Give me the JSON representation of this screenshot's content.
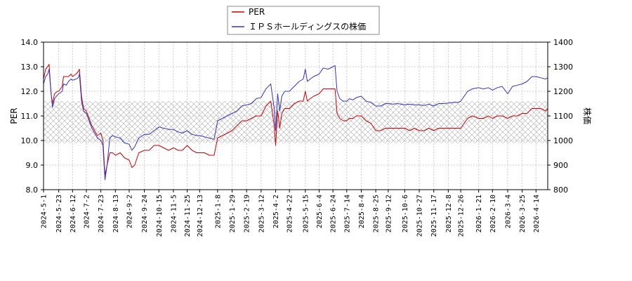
{
  "chart_data": {
    "type": "line",
    "grid": true,
    "legend_position": "top-center",
    "ylabel_left": "PER",
    "ylabel_right": "株価",
    "ylim_left": [
      8.0,
      14.0
    ],
    "ylim_right": [
      800,
      1400
    ],
    "yticks_left": [
      "8.0",
      "9.0",
      "10.0",
      "11.0",
      "12.0",
      "13.0",
      "14.0"
    ],
    "yticks_right": [
      "800",
      "900",
      "1000",
      "1100",
      "1200",
      "1300",
      "1400"
    ],
    "x_range": [
      "2024-05-01",
      "2026-05-01"
    ],
    "xticks": [
      "2024-5-1",
      "2024-5-23",
      "2024-6-12",
      "2024-7-2",
      "2024-7-23",
      "2024-8-13",
      "2024-9-2",
      "2024-9-24",
      "2024-10-15",
      "2024-11-5",
      "2024-11-25",
      "2024-12-13",
      "2025-1-8",
      "2025-1-29",
      "2025-2-19",
      "2025-3-12",
      "2025-4-2",
      "2025-4-22",
      "2025-5-15",
      "2025-6-4",
      "2025-6-24",
      "2025-7-14",
      "2025-8-4",
      "2025-8-25",
      "2025-9-12",
      "2025-10-6",
      "2025-10-27",
      "2025-11-17",
      "2025-12-8",
      "2025-12-26",
      "2026-1-21",
      "2026-2-10",
      "2026-3-4",
      "2026-3-25",
      "2026-4-14"
    ],
    "shaded_band_left": [
      9.9,
      11.6
    ],
    "series": [
      {
        "name": "PER",
        "color": "#cc0000",
        "axis": "left",
        "points": [
          [
            "2024-05-01",
            12.5
          ],
          [
            "2024-05-04",
            12.9
          ],
          [
            "2024-05-07",
            13.0
          ],
          [
            "2024-05-09",
            13.1
          ],
          [
            "2024-05-12",
            11.9
          ],
          [
            "2024-05-14",
            11.5
          ],
          [
            "2024-05-17",
            11.9
          ],
          [
            "2024-05-21",
            12.0
          ],
          [
            "2024-05-23",
            12.0
          ],
          [
            "2024-05-28",
            12.2
          ],
          [
            "2024-05-30",
            12.6
          ],
          [
            "2024-06-03",
            12.6
          ],
          [
            "2024-06-06",
            12.6
          ],
          [
            "2024-06-10",
            12.7
          ],
          [
            "2024-06-12",
            12.6
          ],
          [
            "2024-06-17",
            12.7
          ],
          [
            "2024-06-20",
            12.8
          ],
          [
            "2024-06-22",
            12.9
          ],
          [
            "2024-06-25",
            11.8
          ],
          [
            "2024-06-28",
            11.3
          ],
          [
            "2024-07-02",
            11.2
          ],
          [
            "2024-07-06",
            10.9
          ],
          [
            "2024-07-10",
            10.6
          ],
          [
            "2024-07-14",
            10.4
          ],
          [
            "2024-07-18",
            10.2
          ],
          [
            "2024-07-23",
            10.3
          ],
          [
            "2024-07-26",
            10.0
          ],
          [
            "2024-07-29",
            8.6
          ],
          [
            "2024-08-01",
            9.0
          ],
          [
            "2024-08-05",
            9.5
          ],
          [
            "2024-08-09",
            9.5
          ],
          [
            "2024-08-13",
            9.4
          ],
          [
            "2024-08-20",
            9.5
          ],
          [
            "2024-08-26",
            9.3
          ],
          [
            "2024-09-02",
            9.2
          ],
          [
            "2024-09-06",
            8.9
          ],
          [
            "2024-09-10",
            9.0
          ],
          [
            "2024-09-16",
            9.5
          ],
          [
            "2024-09-24",
            9.6
          ],
          [
            "2024-10-01",
            9.6
          ],
          [
            "2024-10-08",
            9.8
          ],
          [
            "2024-10-15",
            9.8
          ],
          [
            "2024-10-22",
            9.7
          ],
          [
            "2024-10-29",
            9.6
          ],
          [
            "2024-11-05",
            9.7
          ],
          [
            "2024-11-12",
            9.6
          ],
          [
            "2024-11-18",
            9.6
          ],
          [
            "2024-11-25",
            9.8
          ],
          [
            "2024-12-02",
            9.6
          ],
          [
            "2024-12-09",
            9.5
          ],
          [
            "2024-12-13",
            9.5
          ],
          [
            "2024-12-20",
            9.5
          ],
          [
            "2024-12-27",
            9.4
          ],
          [
            "2025-01-03",
            9.4
          ],
          [
            "2025-01-08",
            10.1
          ],
          [
            "2025-01-15",
            10.2
          ],
          [
            "2025-01-22",
            10.3
          ],
          [
            "2025-01-29",
            10.4
          ],
          [
            "2025-02-05",
            10.6
          ],
          [
            "2025-02-12",
            10.8
          ],
          [
            "2025-02-19",
            10.8
          ],
          [
            "2025-02-26",
            10.9
          ],
          [
            "2025-03-05",
            11.0
          ],
          [
            "2025-03-12",
            11.0
          ],
          [
            "2025-03-19",
            11.4
          ],
          [
            "2025-03-26",
            11.6
          ],
          [
            "2025-03-31",
            10.6
          ],
          [
            "2025-04-02",
            9.8
          ],
          [
            "2025-04-05",
            11.2
          ],
          [
            "2025-04-08",
            10.5
          ],
          [
            "2025-04-11",
            11.1
          ],
          [
            "2025-04-15",
            11.3
          ],
          [
            "2025-04-22",
            11.3
          ],
          [
            "2025-04-29",
            11.5
          ],
          [
            "2025-05-06",
            11.6
          ],
          [
            "2025-05-12",
            11.6
          ],
          [
            "2025-05-15",
            12.0
          ],
          [
            "2025-05-18",
            11.6
          ],
          [
            "2025-05-22",
            11.7
          ],
          [
            "2025-05-27",
            11.8
          ],
          [
            "2025-06-04",
            11.9
          ],
          [
            "2025-06-10",
            12.1
          ],
          [
            "2025-06-17",
            12.1
          ],
          [
            "2025-06-24",
            12.1
          ],
          [
            "2025-06-27",
            12.1
          ],
          [
            "2025-06-30",
            11.1
          ],
          [
            "2025-07-04",
            10.9
          ],
          [
            "2025-07-09",
            10.8
          ],
          [
            "2025-07-14",
            10.8
          ],
          [
            "2025-07-18",
            10.9
          ],
          [
            "2025-07-23",
            10.9
          ],
          [
            "2025-07-28",
            11.0
          ],
          [
            "2025-08-04",
            11.0
          ],
          [
            "2025-08-11",
            10.8
          ],
          [
            "2025-08-18",
            10.7
          ],
          [
            "2025-08-25",
            10.4
          ],
          [
            "2025-09-01",
            10.4
          ],
          [
            "2025-09-08",
            10.5
          ],
          [
            "2025-09-12",
            10.5
          ],
          [
            "2025-09-19",
            10.5
          ],
          [
            "2025-09-26",
            10.5
          ],
          [
            "2025-10-06",
            10.5
          ],
          [
            "2025-10-13",
            10.4
          ],
          [
            "2025-10-20",
            10.5
          ],
          [
            "2025-10-27",
            10.4
          ],
          [
            "2025-11-03",
            10.4
          ],
          [
            "2025-11-10",
            10.5
          ],
          [
            "2025-11-17",
            10.4
          ],
          [
            "2025-11-24",
            10.5
          ],
          [
            "2025-12-01",
            10.5
          ],
          [
            "2025-12-08",
            10.5
          ],
          [
            "2025-12-15",
            10.5
          ],
          [
            "2025-12-22",
            10.5
          ],
          [
            "2025-12-26",
            10.5
          ],
          [
            "2026-01-05",
            10.9
          ],
          [
            "2026-01-12",
            11.0
          ],
          [
            "2026-01-21",
            10.9
          ],
          [
            "2026-01-28",
            10.9
          ],
          [
            "2026-02-04",
            11.0
          ],
          [
            "2026-02-10",
            10.9
          ],
          [
            "2026-02-17",
            11.0
          ],
          [
            "2026-02-24",
            11.0
          ],
          [
            "2026-03-04",
            10.9
          ],
          [
            "2026-03-11",
            11.0
          ],
          [
            "2026-03-18",
            11.0
          ],
          [
            "2026-03-25",
            11.1
          ],
          [
            "2026-04-01",
            11.1
          ],
          [
            "2026-04-08",
            11.3
          ],
          [
            "2026-04-14",
            11.3
          ],
          [
            "2026-04-21",
            11.3
          ],
          [
            "2026-04-28",
            11.2
          ],
          [
            "2026-05-01",
            11.3
          ]
        ]
      },
      {
        "name": "ＩＰＳホールディングスの株価",
        "color": "#3333cc",
        "axis": "right",
        "points": [
          [
            "2024-05-01",
            1230
          ],
          [
            "2024-05-04",
            1260
          ],
          [
            "2024-05-07",
            1270
          ],
          [
            "2024-05-09",
            1290
          ],
          [
            "2024-05-12",
            1190
          ],
          [
            "2024-05-14",
            1135
          ],
          [
            "2024-05-17",
            1170
          ],
          [
            "2024-05-21",
            1185
          ],
          [
            "2024-05-23",
            1190
          ],
          [
            "2024-05-28",
            1200
          ],
          [
            "2024-05-30",
            1230
          ],
          [
            "2024-06-03",
            1225
          ],
          [
            "2024-06-06",
            1240
          ],
          [
            "2024-06-10",
            1250
          ],
          [
            "2024-06-12",
            1245
          ],
          [
            "2024-06-17",
            1250
          ],
          [
            "2024-06-20",
            1255
          ],
          [
            "2024-06-22",
            1270
          ],
          [
            "2024-06-25",
            1160
          ],
          [
            "2024-06-28",
            1120
          ],
          [
            "2024-07-02",
            1110
          ],
          [
            "2024-07-06",
            1080
          ],
          [
            "2024-07-10",
            1050
          ],
          [
            "2024-07-14",
            1030
          ],
          [
            "2024-07-18",
            1010
          ],
          [
            "2024-07-23",
            1000
          ],
          [
            "2024-07-26",
            980
          ],
          [
            "2024-07-29",
            840
          ],
          [
            "2024-08-01",
            900
          ],
          [
            "2024-08-05",
            1010
          ],
          [
            "2024-08-09",
            1020
          ],
          [
            "2024-08-13",
            1015
          ],
          [
            "2024-08-20",
            1010
          ],
          [
            "2024-08-26",
            990
          ],
          [
            "2024-09-02",
            985
          ],
          [
            "2024-09-06",
            960
          ],
          [
            "2024-09-10",
            975
          ],
          [
            "2024-09-16",
            1010
          ],
          [
            "2024-09-24",
            1025
          ],
          [
            "2024-10-01",
            1025
          ],
          [
            "2024-10-08",
            1040
          ],
          [
            "2024-10-15",
            1055
          ],
          [
            "2024-10-22",
            1050
          ],
          [
            "2024-10-29",
            1045
          ],
          [
            "2024-11-05",
            1045
          ],
          [
            "2024-11-12",
            1035
          ],
          [
            "2024-11-18",
            1030
          ],
          [
            "2024-11-25",
            1040
          ],
          [
            "2024-12-02",
            1025
          ],
          [
            "2024-12-09",
            1020
          ],
          [
            "2024-12-13",
            1020
          ],
          [
            "2024-12-20",
            1015
          ],
          [
            "2024-12-27",
            1010
          ],
          [
            "2025-01-03",
            1005
          ],
          [
            "2025-01-08",
            1080
          ],
          [
            "2025-01-15",
            1090
          ],
          [
            "2025-01-22",
            1100
          ],
          [
            "2025-01-29",
            1110
          ],
          [
            "2025-02-05",
            1120
          ],
          [
            "2025-02-12",
            1140
          ],
          [
            "2025-02-19",
            1145
          ],
          [
            "2025-02-26",
            1150
          ],
          [
            "2025-03-05",
            1170
          ],
          [
            "2025-03-12",
            1175
          ],
          [
            "2025-03-19",
            1210
          ],
          [
            "2025-03-26",
            1230
          ],
          [
            "2025-03-31",
            1130
          ],
          [
            "2025-04-02",
            1040
          ],
          [
            "2025-04-05",
            1190
          ],
          [
            "2025-04-08",
            1120
          ],
          [
            "2025-04-11",
            1180
          ],
          [
            "2025-04-15",
            1200
          ],
          [
            "2025-04-22",
            1200
          ],
          [
            "2025-04-29",
            1220
          ],
          [
            "2025-05-06",
            1240
          ],
          [
            "2025-05-12",
            1250
          ],
          [
            "2025-05-15",
            1290
          ],
          [
            "2025-05-18",
            1240
          ],
          [
            "2025-05-22",
            1250
          ],
          [
            "2025-05-27",
            1260
          ],
          [
            "2025-06-04",
            1270
          ],
          [
            "2025-06-10",
            1295
          ],
          [
            "2025-06-17",
            1290
          ],
          [
            "2025-06-24",
            1300
          ],
          [
            "2025-06-27",
            1305
          ],
          [
            "2025-06-30",
            1200
          ],
          [
            "2025-07-04",
            1170
          ],
          [
            "2025-07-09",
            1160
          ],
          [
            "2025-07-14",
            1160
          ],
          [
            "2025-07-18",
            1170
          ],
          [
            "2025-07-23",
            1165
          ],
          [
            "2025-07-28",
            1175
          ],
          [
            "2025-08-04",
            1180
          ],
          [
            "2025-08-11",
            1160
          ],
          [
            "2025-08-18",
            1155
          ],
          [
            "2025-08-25",
            1140
          ],
          [
            "2025-09-01",
            1140
          ],
          [
            "2025-09-08",
            1150
          ],
          [
            "2025-09-12",
            1150
          ],
          [
            "2025-09-19",
            1148
          ],
          [
            "2025-09-26",
            1150
          ],
          [
            "2025-10-06",
            1145
          ],
          [
            "2025-10-13",
            1148
          ],
          [
            "2025-10-20",
            1145
          ],
          [
            "2025-10-27",
            1145
          ],
          [
            "2025-11-03",
            1142
          ],
          [
            "2025-11-10",
            1148
          ],
          [
            "2025-11-17",
            1140
          ],
          [
            "2025-11-24",
            1150
          ],
          [
            "2025-12-01",
            1150
          ],
          [
            "2025-12-08",
            1152
          ],
          [
            "2025-12-15",
            1155
          ],
          [
            "2025-12-22",
            1155
          ],
          [
            "2025-12-26",
            1160
          ],
          [
            "2026-01-05",
            1200
          ],
          [
            "2026-01-12",
            1210
          ],
          [
            "2026-01-21",
            1215
          ],
          [
            "2026-01-28",
            1210
          ],
          [
            "2026-02-04",
            1215
          ],
          [
            "2026-02-10",
            1205
          ],
          [
            "2026-02-17",
            1215
          ],
          [
            "2026-02-24",
            1220
          ],
          [
            "2026-03-04",
            1190
          ],
          [
            "2026-03-11",
            1220
          ],
          [
            "2026-03-18",
            1225
          ],
          [
            "2026-03-25",
            1230
          ],
          [
            "2026-04-01",
            1240
          ],
          [
            "2026-04-08",
            1260
          ],
          [
            "2026-04-14",
            1260
          ],
          [
            "2026-04-21",
            1255
          ],
          [
            "2026-04-28",
            1250
          ],
          [
            "2026-05-01",
            1255
          ]
        ]
      }
    ]
  }
}
